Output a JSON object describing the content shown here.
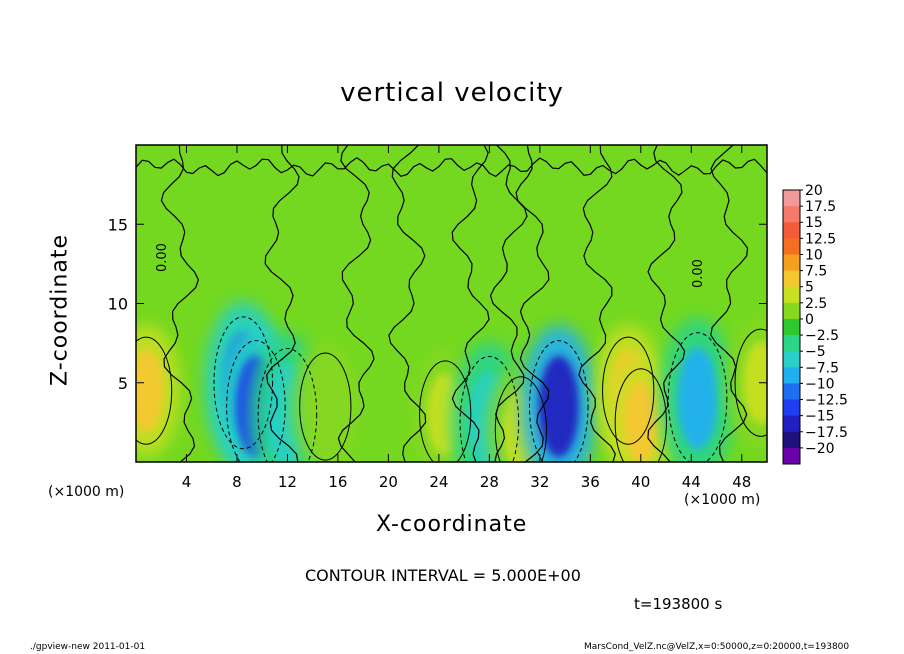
{
  "chart_data": {
    "type": "heatmap",
    "title": "vertical velocity",
    "xlabel": "X-coordinate",
    "ylabel": "Z-coordinate",
    "x_unit_label": "(×1000 m)",
    "xlim": [
      0,
      50
    ],
    "ylim": [
      0,
      20
    ],
    "x_ticks": [
      4,
      8,
      12,
      16,
      20,
      24,
      28,
      32,
      36,
      40,
      44,
      48
    ],
    "y_ticks": [
      5,
      10,
      15
    ],
    "contour_label": "0.00",
    "colorbar": {
      "levels": [
        "20",
        "17.5",
        "15",
        "12.5",
        "10",
        "7.5",
        "5",
        "2.5",
        "0",
        "−2.5",
        "−5",
        "−7.5",
        "−10",
        "−12.5",
        "−15",
        "−17.5",
        "−20"
      ],
      "colors": [
        "#f29a9a",
        "#f57a6a",
        "#f55a3a",
        "#f47020",
        "#f5a020",
        "#f5c830",
        "#c8e020",
        "#86d820",
        "#30c830",
        "#2cd488",
        "#28d0c8",
        "#20b0f0",
        "#1f6ef0",
        "#1e3ef0",
        "#2020c0",
        "#20107a",
        "#6a00a8"
      ]
    },
    "features": [
      {
        "type": "updraft",
        "x": 0.8,
        "z": 4.5,
        "value": 7.5
      },
      {
        "type": "downdraft",
        "x": 8.5,
        "z": 5.0,
        "value": -10
      },
      {
        "type": "downdraft",
        "x": 9.5,
        "z": 3.5,
        "value": -12.5
      },
      {
        "type": "downdraft",
        "x": 12.0,
        "z": 3.0,
        "value": -5
      },
      {
        "type": "updraft",
        "x": 15.0,
        "z": 3.5,
        "value": 2.5
      },
      {
        "type": "updraft",
        "x": 24.5,
        "z": 3.0,
        "value": 5
      },
      {
        "type": "downdraft",
        "x": 28.0,
        "z": 2.5,
        "value": -5
      },
      {
        "type": "updraft",
        "x": 30.5,
        "z": 2.0,
        "value": 5
      },
      {
        "type": "downdraft",
        "x": 33.5,
        "z": 3.5,
        "value": -15
      },
      {
        "type": "updraft",
        "x": 39.0,
        "z": 4.5,
        "value": 7.5
      },
      {
        "type": "updraft",
        "x": 40.0,
        "z": 2.5,
        "value": 7.5
      },
      {
        "type": "downdraft",
        "x": 44.5,
        "z": 4.0,
        "value": -7.5
      },
      {
        "type": "updraft",
        "x": 49.5,
        "z": 5.0,
        "value": 5
      }
    ]
  },
  "contour_note": "CONTOUR INTERVAL = 5.000E+00",
  "time_label": "t=193800 s",
  "footer_left": "./gpview-new   2011-01-01",
  "footer_right": "MarsCond_VelZ.nc@VelZ,x=0:50000,z=0:20000,t=193800"
}
